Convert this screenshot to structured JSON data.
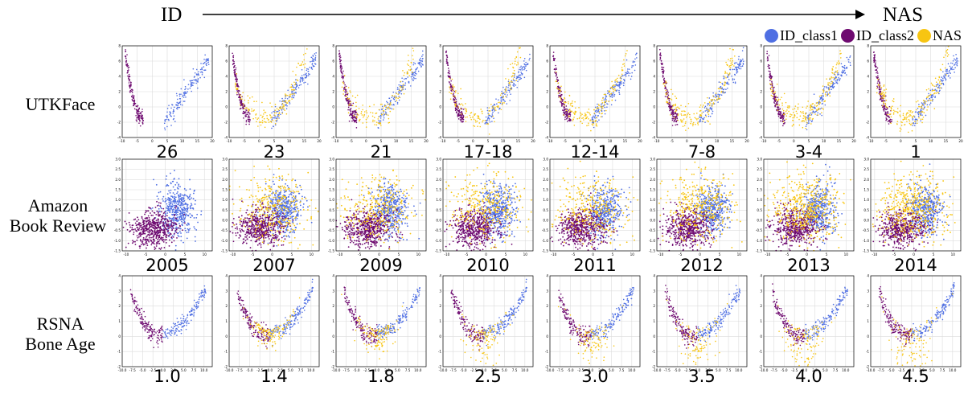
{
  "header": {
    "left_label": "ID",
    "right_label": "NAS"
  },
  "legend": {
    "items": [
      {
        "name": "ID_class1",
        "color": "#4f6fe3"
      },
      {
        "name": "ID_class2",
        "color": "#6e0a70"
      },
      {
        "name": "NAS",
        "color": "#f7c512"
      }
    ]
  },
  "rows": [
    {
      "label_lines": [
        "UTKFace"
      ],
      "columns": [
        "26",
        "23",
        "21",
        "17-18",
        "12-14",
        "7-8",
        "3-4",
        "1"
      ]
    },
    {
      "label_lines": [
        "Amazon",
        "Book Review"
      ],
      "columns": [
        "2005",
        "2007",
        "2009",
        "2010",
        "2011",
        "2012",
        "2013",
        "2014"
      ]
    },
    {
      "label_lines": [
        "RSNA",
        "Bone Age"
      ],
      "columns": [
        "1.0",
        "1.4",
        "1.8",
        "2.5",
        "3.0",
        "3.5",
        "4.0",
        "4.5"
      ]
    }
  ],
  "chart_data": [
    {
      "type": "scatter",
      "dataset": "UTKFace",
      "xlim": [
        -10,
        20
      ],
      "ylim": [
        -4,
        8
      ],
      "xticks": [
        -10,
        -5,
        0,
        5,
        10,
        15,
        20
      ],
      "yticks": [
        -4,
        -2,
        0,
        2,
        4,
        6,
        8
      ],
      "grid": true,
      "series": [
        "ID_class1",
        "ID_class2",
        "NAS"
      ],
      "nas_fraction": [
        0,
        0.5,
        0.45,
        0.45,
        0.55,
        0.55,
        0.6,
        0.6
      ]
    },
    {
      "type": "scatter",
      "dataset": "Amazon Book Review",
      "xlim": [
        -11,
        12
      ],
      "ylim": [
        -1.5,
        3.0
      ],
      "xticks": [
        -10,
        -5,
        0,
        5,
        10
      ],
      "yticks": [
        -1.5,
        -1.0,
        -0.5,
        0.0,
        0.5,
        1.0,
        1.5,
        2.0,
        2.5,
        3.0
      ],
      "grid": true,
      "series": [
        "ID_class1",
        "ID_class2",
        "NAS"
      ],
      "nas_fraction": [
        0,
        0.35,
        0.35,
        0.35,
        0.35,
        0.4,
        0.5,
        0.5
      ]
    },
    {
      "type": "scatter",
      "dataset": "RSNA Bone Age",
      "xlim": [
        -10,
        12
      ],
      "ylim": [
        -2,
        4
      ],
      "xticks": [
        -10.0,
        -7.5,
        -5.0,
        -2.5,
        0.0,
        2.5,
        5.0,
        7.5,
        10.0
      ],
      "yticks": [
        -2,
        -1,
        0,
        1,
        2,
        3,
        4
      ],
      "grid": true,
      "series": [
        "ID_class1",
        "ID_class2",
        "NAS"
      ],
      "nas_fraction": [
        0,
        0.4,
        0.4,
        0.35,
        0.35,
        0.35,
        0.4,
        0.4
      ]
    }
  ]
}
